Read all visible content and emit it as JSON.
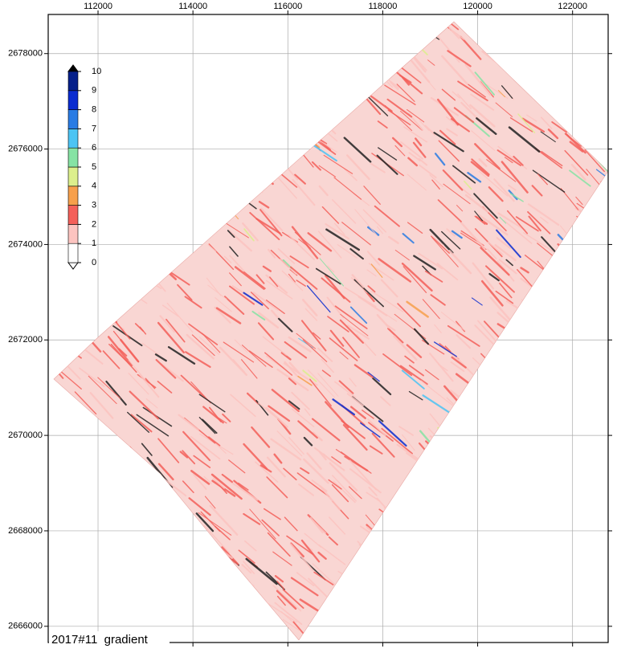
{
  "map": {
    "label": "2017#11  gradient",
    "xlim": [
      110950,
      122750
    ],
    "ylim": [
      2665660,
      2678820
    ],
    "xticks": [
      112000,
      114000,
      116000,
      118000,
      120000,
      122000
    ],
    "yticks": [
      2666000,
      2668000,
      2670000,
      2672000,
      2674000,
      2676000,
      2678000
    ],
    "grid": true,
    "colorbar": {
      "levels": [
        0,
        1,
        2,
        3,
        4,
        5,
        6,
        7,
        8,
        9,
        10
      ],
      "colors": [
        "#ffffff",
        "#fcc4c0",
        "#f4605a",
        "#f7a04c",
        "#dcef8c",
        "#86e3a4",
        "#4cc4f4",
        "#2a7ce4",
        "#0a2cd0",
        "#06208a"
      ]
    }
  }
}
